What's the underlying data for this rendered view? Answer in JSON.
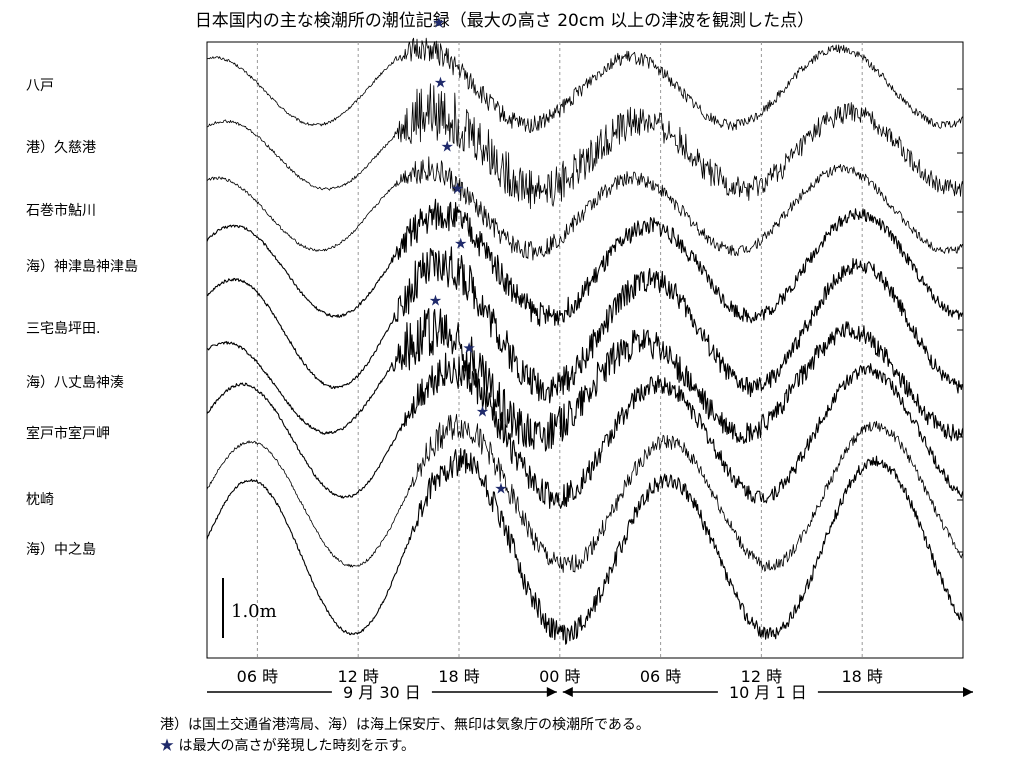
{
  "title": "日本国内の主な検潮所の潮位記録（最大の高さ 20cm 以上の津波を観測した点）",
  "chart_data": {
    "type": "line",
    "title": "日本国内の主な検潮所の潮位記録（最大の高さ 20cm 以上の津波を観測した点）",
    "x_unit": "hours since 2009-09-30 03:00",
    "xlim": [
      0,
      45
    ],
    "x_ticks": [
      {
        "hour": 3,
        "label": "06 時"
      },
      {
        "hour": 9,
        "label": "12 時"
      },
      {
        "hour": 15,
        "label": "18 時"
      },
      {
        "hour": 21,
        "label": "00 時"
      },
      {
        "hour": 27,
        "label": "06 時"
      },
      {
        "hour": 33,
        "label": "12 時"
      },
      {
        "hour": 39,
        "label": "18 時"
      }
    ],
    "gridlines": "dashed vertical at each tick",
    "date_ranges": [
      {
        "label": "9 月 30 日",
        "from_hour": 0,
        "to_hour": 21
      },
      {
        "label": "10 月 1 日",
        "from_hour": 21,
        "to_hour": 45
      }
    ],
    "scale_bar": {
      "label": "1.0m",
      "value_m": 1.0
    },
    "series": [
      {
        "name": "八戸",
        "tide_amplitude_m": 0.3,
        "tide_phase_h": 12.8,
        "tsunami_amplitude_m": 0.09,
        "tsunami_onset_h": 11.2,
        "max_height_hour": 13.8
      },
      {
        "name": "港）久慈港",
        "tide_amplitude_m": 0.3,
        "tide_phase_h": 13.5,
        "tsunami_amplitude_m": 0.22,
        "tsunami_onset_h": 11.2,
        "max_height_hour": 13.9
      },
      {
        "name": "石巻市鮎川",
        "tide_amplitude_m": 0.32,
        "tide_phase_h": 13.0,
        "tsunami_amplitude_m": 0.1,
        "tsunami_onset_h": 11.2,
        "max_height_hour": 14.3
      },
      {
        "name": "海）神津島神津島",
        "tide_amplitude_m": 0.4,
        "tide_phase_h": 14.0,
        "tsunami_amplitude_m": 0.13,
        "tsunami_onset_h": 11.0,
        "max_height_hour": 14.9
      },
      {
        "name": "三宅島坪田.",
        "tide_amplitude_m": 0.48,
        "tide_phase_h": 14.0,
        "tsunami_amplitude_m": 0.17,
        "tsunami_onset_h": 11.0,
        "max_height_hour": 15.1
      },
      {
        "name": "海）八丈島神湊",
        "tide_amplitude_m": 0.4,
        "tide_phase_h": 13.5,
        "tsunami_amplitude_m": 0.21,
        "tsunami_onset_h": 11.0,
        "max_height_hour": 13.6
      },
      {
        "name": "室戸市室戸岬",
        "tide_amplitude_m": 0.5,
        "tide_phase_h": 14.5,
        "tsunami_amplitude_m": 0.14,
        "tsunami_onset_h": 11.5,
        "max_height_hour": 15.6
      },
      {
        "name": "枕崎",
        "tide_amplitude_m": 0.55,
        "tide_phase_h": 15.0,
        "tsunami_amplitude_m": 0.11,
        "tsunami_onset_h": 12.0,
        "max_height_hour": 16.4
      },
      {
        "name": "海）中之島",
        "tide_amplitude_m": 0.68,
        "tide_phase_h": 15.0,
        "tsunami_amplitude_m": 0.12,
        "tsunami_onset_h": 12.0,
        "max_height_hour": 17.5
      }
    ]
  },
  "notes": [
    "港）は国土交通省港湾局、海）は海上保安庁、無印は気象庁の検潮所である。",
    "は最大の高さが発現した時刻を示す。"
  ],
  "star_glyph": "★",
  "colors": {
    "trace": "#000000",
    "star": "#1f2a6b",
    "grid": "#9a9a9a"
  }
}
